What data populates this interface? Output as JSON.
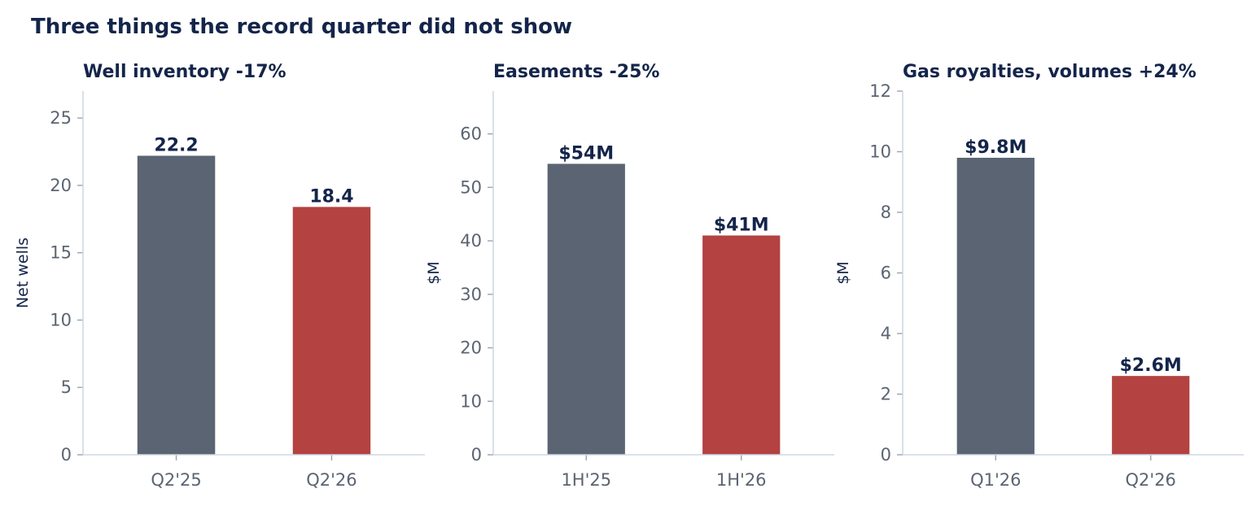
{
  "figure": {
    "title": "Three things the record quarter did not show"
  },
  "colors": {
    "prior": "#5a6472",
    "current": "#b34240",
    "text": "#14254a",
    "ticks": "#5b6472",
    "axis": "#cfd8e5"
  },
  "chart_data": [
    {
      "type": "bar",
      "title": "Well inventory -17%",
      "ylabel": "Net wells",
      "categories": [
        "Q2'25",
        "Q2'26"
      ],
      "values": [
        22.2,
        18.4
      ],
      "value_labels": [
        "22.2",
        "18.4"
      ],
      "ylim": [
        0,
        27
      ],
      "yticks": [
        0,
        5,
        10,
        15,
        20,
        25
      ],
      "grid": false
    },
    {
      "type": "bar",
      "title": "Easements -25%",
      "ylabel": "$M",
      "categories": [
        "1H'25",
        "1H'26"
      ],
      "values": [
        54.4,
        41
      ],
      "value_labels": [
        "$54M",
        "$41M"
      ],
      "ylim": [
        0,
        68
      ],
      "yticks": [
        0,
        10,
        20,
        30,
        40,
        50,
        60
      ],
      "grid": false
    },
    {
      "type": "bar",
      "title": "Gas royalties, volumes +24%",
      "ylabel": "$M",
      "categories": [
        "Q1'26",
        "Q2'26"
      ],
      "values": [
        9.8,
        2.6
      ],
      "value_labels": [
        "$9.8M",
        "$2.6M"
      ],
      "ylim": [
        0,
        12
      ],
      "yticks": [
        0,
        2,
        4,
        6,
        8,
        10,
        12
      ],
      "grid": false
    }
  ]
}
